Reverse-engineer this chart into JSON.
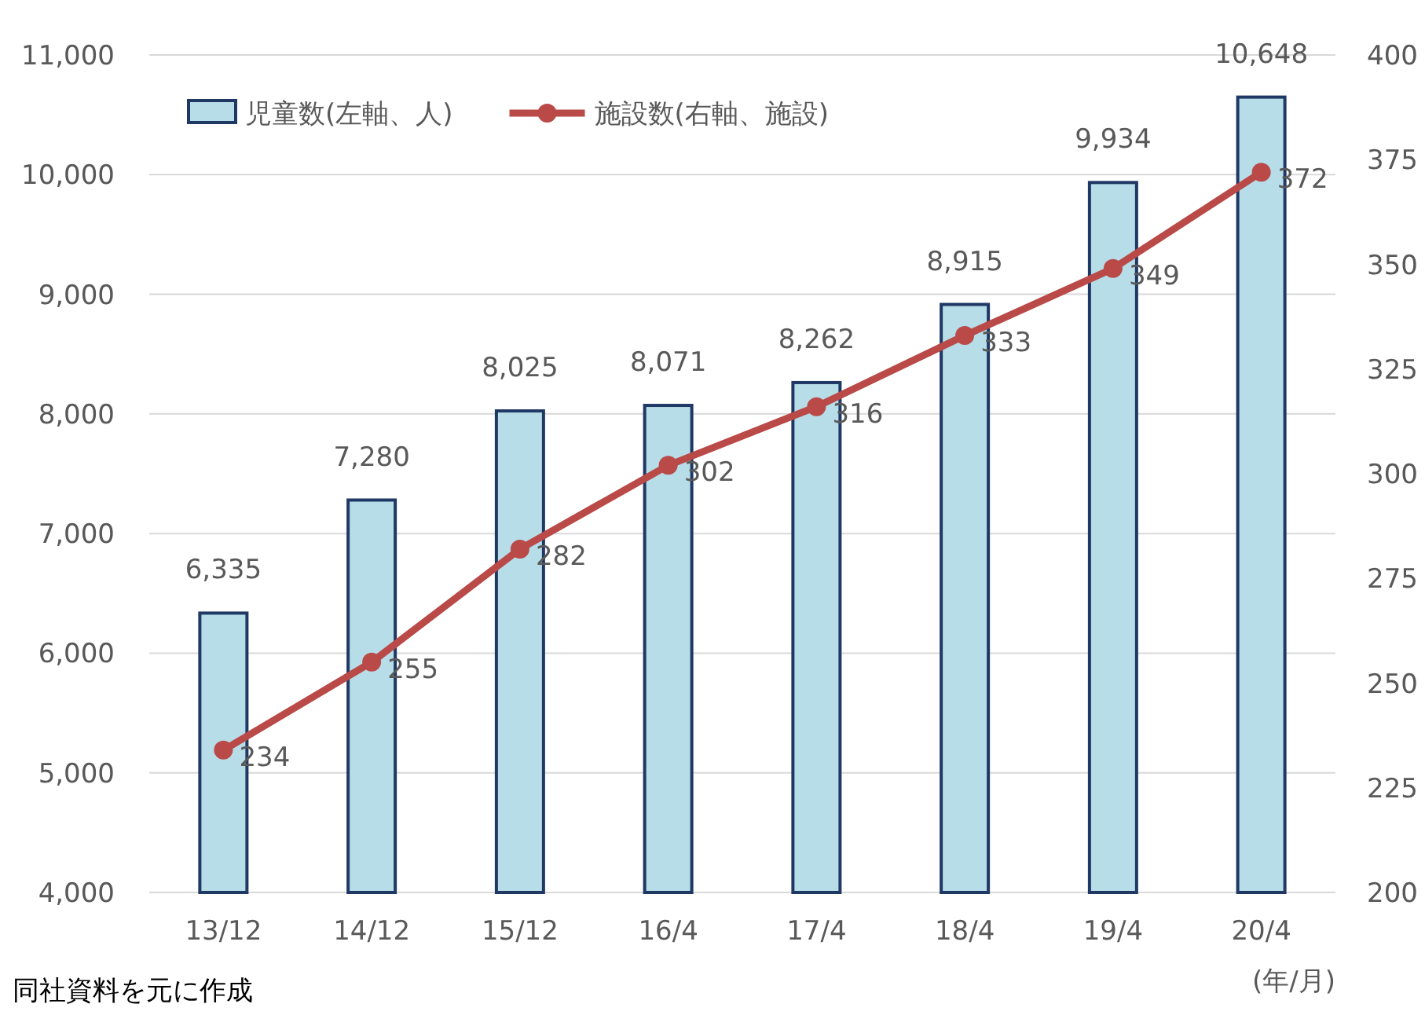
{
  "chart_data": {
    "type": "bar",
    "xlabel": "(年/月)",
    "categories": [
      "13/12",
      "14/12",
      "15/12",
      "16/4",
      "17/4",
      "18/4",
      "19/4",
      "20/4"
    ],
    "series": [
      {
        "name": "児童数(左軸、人)",
        "color": "#b7dde8",
        "values": [
          6335,
          7280,
          8025,
          8071,
          8262,
          8915,
          9934,
          10648
        ],
        "value_labels": [
          "6,335",
          "7,280",
          "8,025",
          "8,071",
          "8,262",
          "8,915",
          "9,934",
          "10,648"
        ]
      },
      {
        "name": "施設数(右軸、施設)",
        "type": "line",
        "axis": "y2",
        "color": "#b94a48",
        "marker": "circle",
        "values": [
          234,
          255,
          282,
          302,
          316,
          333,
          349,
          372
        ],
        "value_labels": [
          "234",
          "255",
          "282",
          "302",
          "316",
          "333",
          "349",
          "372"
        ]
      }
    ],
    "ylim": [
      4000,
      11000
    ],
    "yticks": [
      {
        "value": 4000,
        "label": "4,000"
      },
      {
        "value": 5000,
        "label": "5,000"
      },
      {
        "value": 6000,
        "label": "6,000"
      },
      {
        "value": 7000,
        "label": "7,000"
      },
      {
        "value": 8000,
        "label": "8,000"
      },
      {
        "value": 9000,
        "label": "9,000"
      },
      {
        "value": 10000,
        "label": "10,000"
      },
      {
        "value": 11000,
        "label": "11,000"
      }
    ],
    "y2lim": [
      200,
      400
    ],
    "y2ticks": [
      200,
      225,
      250,
      275,
      300,
      325,
      350,
      375,
      400
    ],
    "grid": "y",
    "legend": "top left",
    "annotations": [
      "同社資料を元に作成"
    ]
  }
}
